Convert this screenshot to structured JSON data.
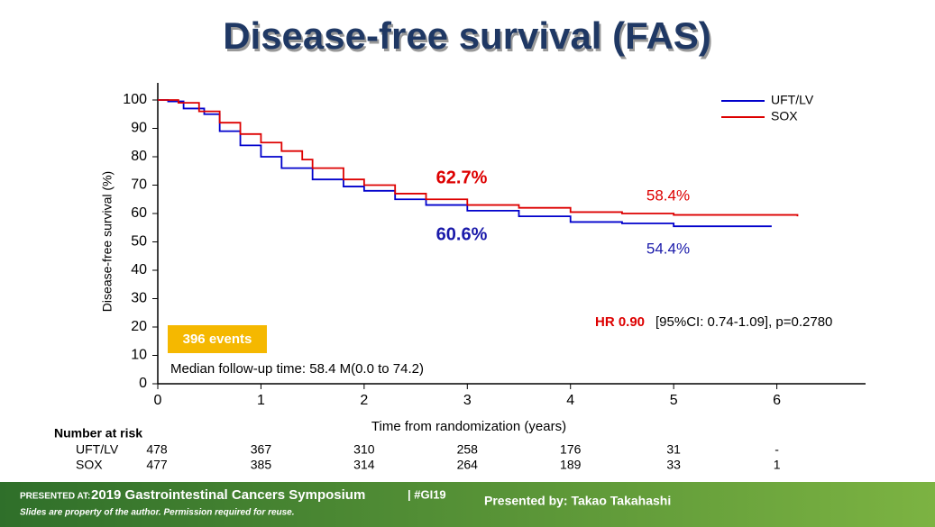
{
  "chart_data": {
    "type": "step",
    "title": "Disease-free survival (FAS)",
    "x_label": "Time from randomization (years)",
    "y_label": "Disease-free survival (%)",
    "xlim": [
      0,
      6.86
    ],
    "ylim": [
      0,
      100
    ],
    "xticks": [
      0,
      1,
      2,
      3,
      4,
      5,
      6
    ],
    "yticks": [
      0,
      10,
      20,
      30,
      40,
      50,
      60,
      70,
      80,
      90,
      100
    ],
    "legend": "top-right",
    "series": [
      {
        "name": "UFT/LV",
        "color": "#0000cc",
        "x": [
          0,
          0.1,
          0.25,
          0.45,
          0.6,
          0.8,
          1.0,
          1.2,
          1.5,
          1.8,
          2.0,
          2.3,
          2.6,
          3.0,
          3.5,
          4.0,
          4.5,
          5.0,
          5.95
        ],
        "values": [
          100,
          99.5,
          97,
          95,
          89,
          84,
          80,
          76,
          72,
          69.5,
          68,
          65,
          63,
          61,
          59,
          57,
          56.5,
          55.5,
          55.5
        ]
      },
      {
        "name": "SOX",
        "color": "#dd0000",
        "x": [
          0,
          0.2,
          0.4,
          0.6,
          0.8,
          1.0,
          1.2,
          1.4,
          1.5,
          1.8,
          2.0,
          2.3,
          2.6,
          3.0,
          3.5,
          4.0,
          4.5,
          5.0,
          6.2
        ],
        "values": [
          100,
          99,
          96,
          92,
          88,
          85,
          82,
          79,
          76,
          72,
          70,
          67,
          65,
          63,
          62,
          60.5,
          60,
          59.5,
          59
        ]
      }
    ],
    "annotations": {
      "sox_3yr": "62.7%",
      "uft_3yr": "60.6%",
      "sox_5yr": "58.4%",
      "uft_5yr": "54.4%",
      "hr_label": "HR 0.90",
      "hr_detail": "[95%CI: 0.74-1.09], p=0.2780",
      "events": "396 events",
      "follow_up": "Median follow-up time: 58.4 M(0.0 to 74.2)"
    }
  },
  "risk_table": {
    "title": "Number at risk",
    "rows": [
      {
        "name": "UFT/LV",
        "values": [
          "478",
          "367",
          "310",
          "258",
          "176",
          "31",
          "-"
        ]
      },
      {
        "name": "SOX",
        "values": [
          "477",
          "385",
          "314",
          "264",
          "189",
          "33",
          "1"
        ]
      }
    ]
  },
  "footer": {
    "presented_at": "PRESENTED AT:",
    "meeting": "2019 Gastrointestinal Cancers Symposium",
    "hashtag": "| #GI19",
    "disclaimer": "Slides are property of the author. Permission required for reuse.",
    "presenter": "Presented by: Takao Takahashi"
  }
}
